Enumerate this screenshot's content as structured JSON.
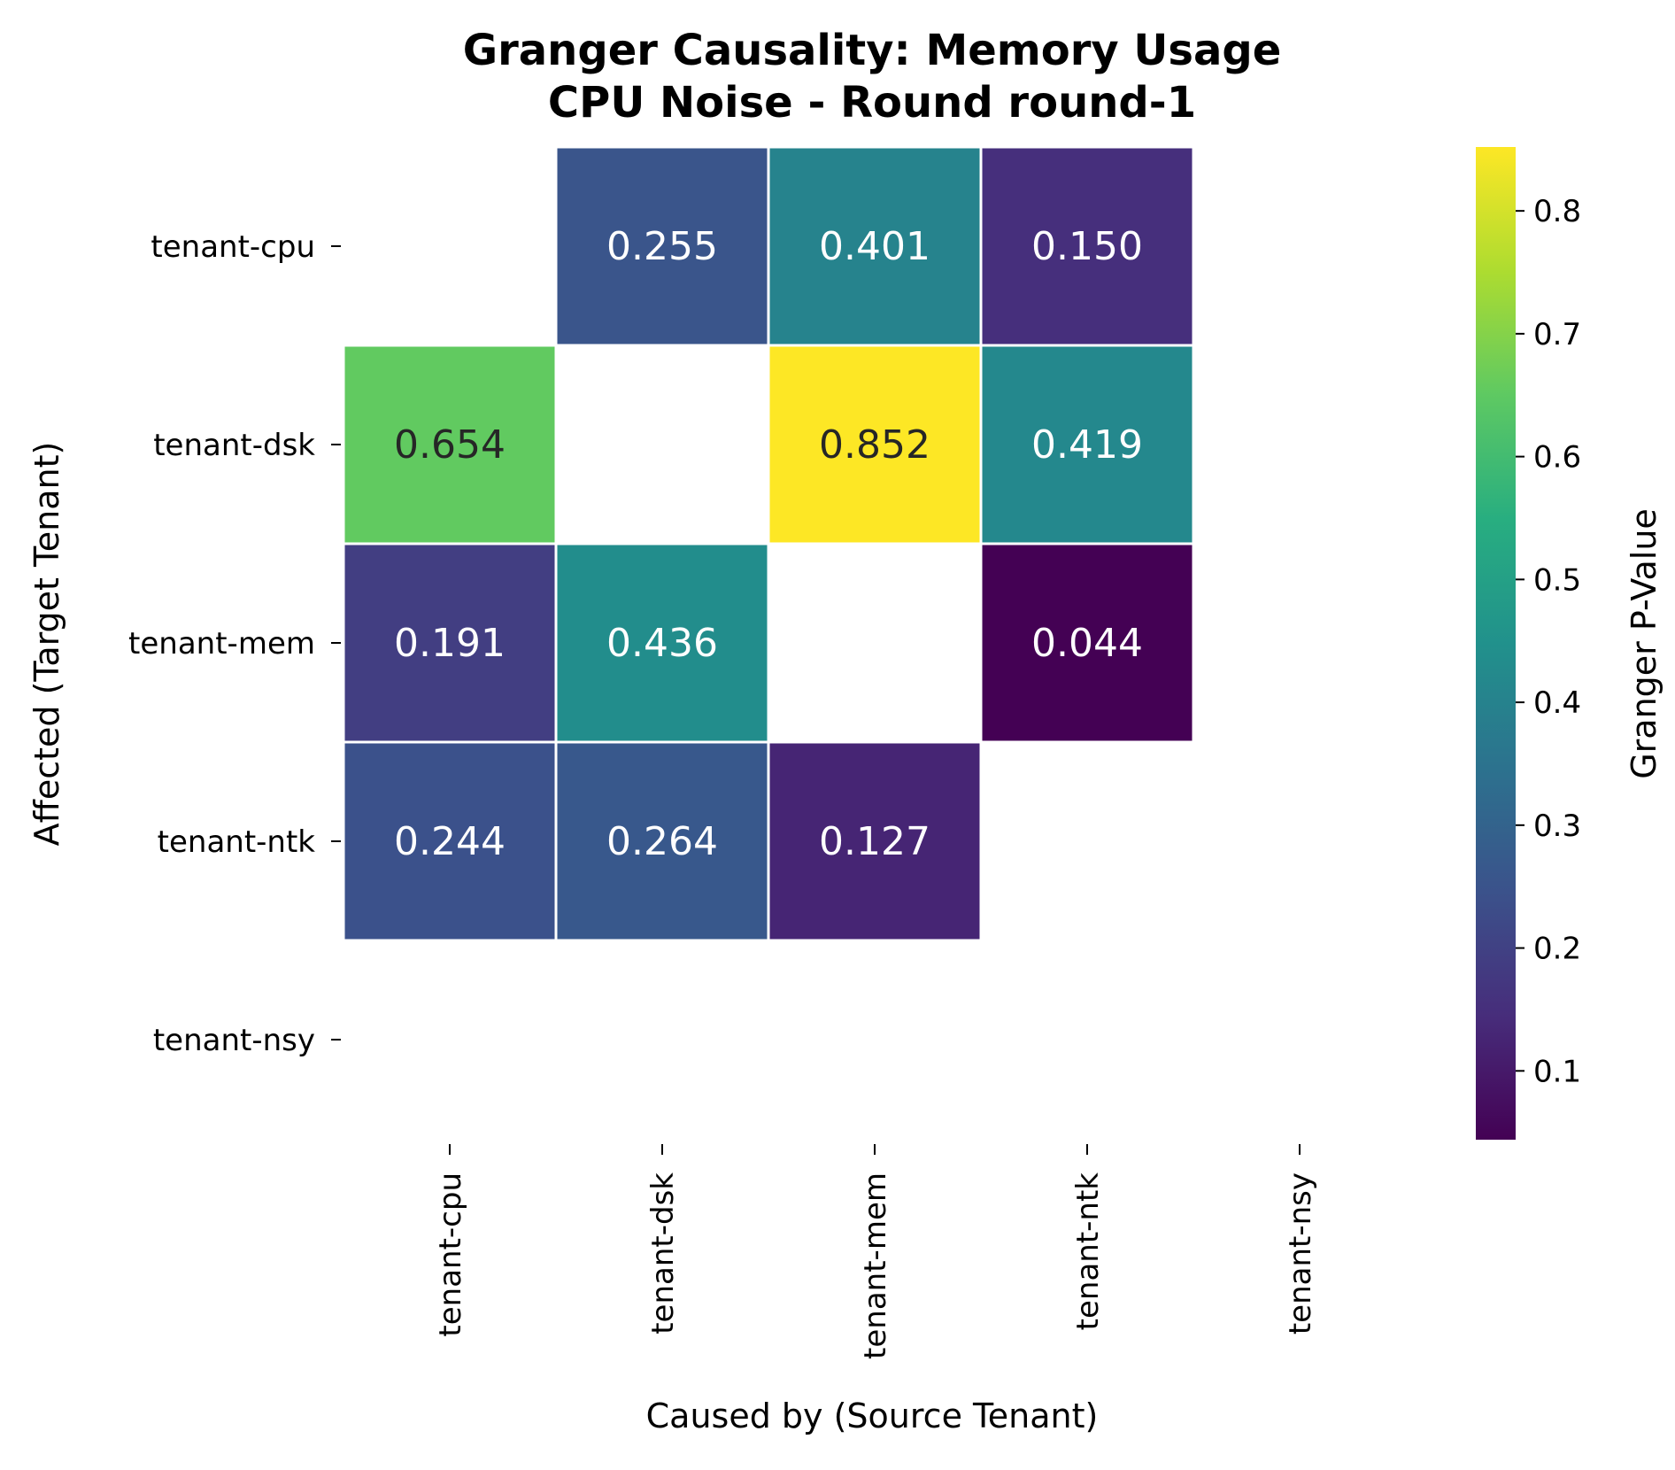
{
  "chart_data": {
    "type": "heatmap",
    "title_lines": [
      "Granger Causality: Memory Usage",
      "CPU Noise - Round round-1"
    ],
    "xlabel": "Caused by (Source Tenant)",
    "ylabel": "Affected (Target Tenant)",
    "x_categories": [
      "tenant-cpu",
      "tenant-dsk",
      "tenant-mem",
      "tenant-ntk",
      "tenant-nsy"
    ],
    "y_categories": [
      "tenant-cpu",
      "tenant-dsk",
      "tenant-mem",
      "tenant-ntk",
      "tenant-nsy"
    ],
    "values": [
      [
        null,
        0.255,
        0.401,
        0.15,
        null
      ],
      [
        0.654,
        null,
        0.852,
        0.419,
        null
      ],
      [
        0.191,
        0.436,
        null,
        0.044,
        null
      ],
      [
        0.244,
        0.264,
        0.127,
        null,
        null
      ],
      [
        null,
        null,
        null,
        null,
        null
      ]
    ],
    "value_labels": [
      [
        "",
        "0.255",
        "0.401",
        "0.150",
        ""
      ],
      [
        "0.654",
        "",
        "0.852",
        "0.419",
        ""
      ],
      [
        "0.191",
        "0.436",
        "",
        "0.044",
        ""
      ],
      [
        "0.244",
        "0.264",
        "0.127",
        "",
        ""
      ],
      [
        "",
        "",
        "",
        "",
        ""
      ]
    ],
    "colormap": "viridis",
    "colorbar": {
      "label": "Granger P-Value",
      "range": [
        0.044,
        0.852
      ],
      "ticks": [
        0.1,
        0.2,
        0.3,
        0.4,
        0.5,
        0.6,
        0.7,
        0.8
      ],
      "tick_labels": [
        "0.1",
        "0.2",
        "0.3",
        "0.4",
        "0.5",
        "0.6",
        "0.7",
        "0.8"
      ]
    },
    "grid": false,
    "cell_border_color": "#ffffff"
  }
}
